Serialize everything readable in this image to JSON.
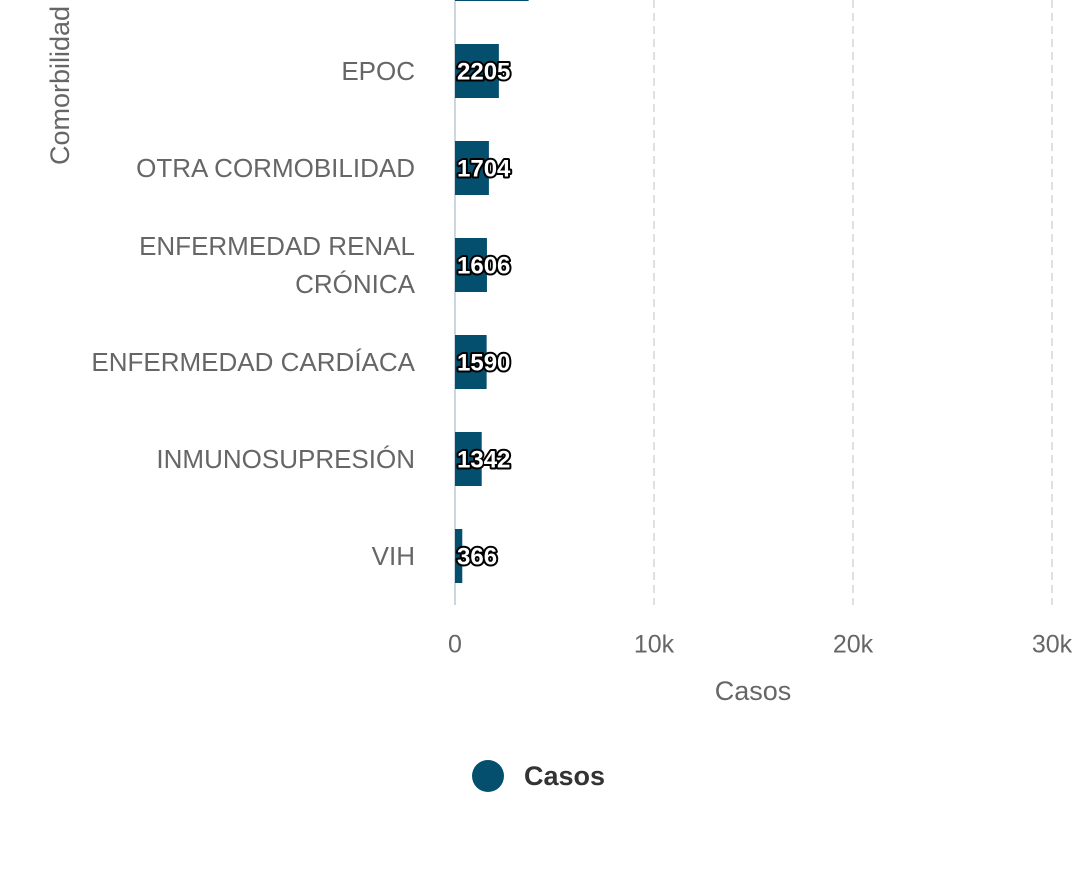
{
  "chart_data": {
    "type": "bar",
    "orientation": "horizontal",
    "y_label": "Comorbilidad",
    "x_label": "Casos",
    "categories": [
      null,
      "EPOC",
      "OTRA CORMOBILIDAD",
      "ENFERMEDAD RENAL CRÓNICA",
      "ENFERMEDAD CARDÍACA",
      "INMUNOSUPRESIÓN",
      "VIH"
    ],
    "series": [
      {
        "name": "Casos",
        "color": "#054f6e",
        "values": [
          3700,
          2205,
          1704,
          1606,
          1590,
          1342,
          366
        ]
      }
    ],
    "xlim": [
      0,
      30000
    ],
    "xticks": [
      0,
      {
        "value": 10000,
        "label": "10k"
      },
      {
        "value": 20000,
        "label": "20k"
      },
      {
        "value": 30000,
        "label": "30k"
      }
    ],
    "grid": true,
    "legend": "bottom"
  }
}
